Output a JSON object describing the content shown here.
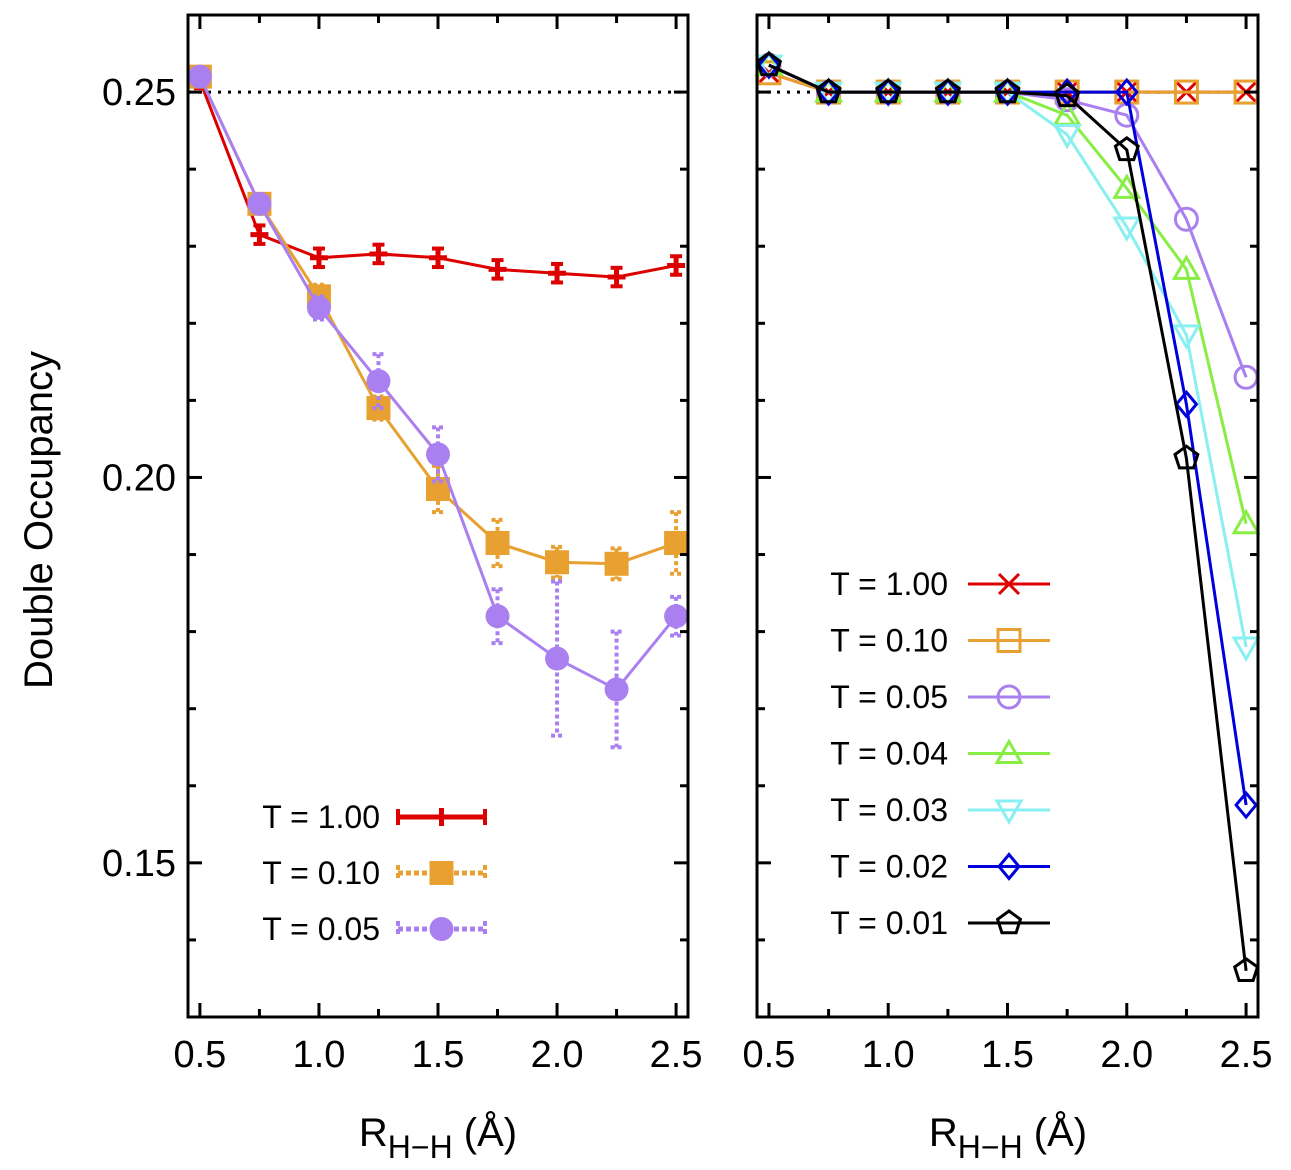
{
  "chart_data": [
    {
      "type": "line",
      "panel": "left",
      "title": "",
      "xlabel": "R",
      "xlabel_subscript": "H−H",
      "xlabel_unit": " (Å)",
      "ylabel": "Double Occupancy",
      "xlim": [
        0.45,
        2.55
      ],
      "ylim": [
        0.13,
        0.26
      ],
      "x_ticks": [
        {
          "value": 0.5,
          "label": "0.5"
        },
        {
          "value": 1.0,
          "label": "1.0"
        },
        {
          "value": 1.5,
          "label": "1.5"
        },
        {
          "value": 2.0,
          "label": "2.0"
        },
        {
          "value": 2.5,
          "label": "2.5"
        }
      ],
      "y_ticks": [
        {
          "value": 0.15,
          "label": "0.15"
        },
        {
          "value": 0.2,
          "label": "0.20"
        },
        {
          "value": 0.25,
          "label": "0.25"
        }
      ],
      "reference_line": 0.25,
      "legend_position": "bottom-left",
      "series": [
        {
          "name": "T = 1.00",
          "color": "#dd0000",
          "marker": "plus",
          "dashed_errorbars": false,
          "x": [
            0.5,
            0.75,
            1.0,
            1.25,
            1.5,
            1.75,
            2.0,
            2.25,
            2.5
          ],
          "y": [
            0.2515,
            0.2315,
            0.2285,
            0.229,
            0.2285,
            0.227,
            0.2265,
            0.226,
            0.2275
          ],
          "err": [
            0.001,
            0.0012,
            0.0012,
            0.0012,
            0.0012,
            0.0012,
            0.0012,
            0.0012,
            0.0012
          ]
        },
        {
          "name": "T = 0.10",
          "color": "#e8a030",
          "marker": "filled-square",
          "dashed_errorbars": true,
          "x": [
            0.5,
            0.75,
            1.0,
            1.25,
            1.5,
            1.75,
            2.0,
            2.25,
            2.5
          ],
          "y": [
            0.252,
            0.2355,
            0.2235,
            0.209,
            0.1985,
            0.1915,
            0.189,
            0.1888,
            0.1915
          ],
          "err": [
            0.0005,
            0.001,
            0.0015,
            0.0015,
            0.003,
            0.003,
            0.002,
            0.002,
            0.004
          ]
        },
        {
          "name": "T = 0.05",
          "color": "#aa80f0",
          "marker": "filled-circle",
          "dashed_errorbars": true,
          "x": [
            0.5,
            0.75,
            1.0,
            1.25,
            1.5,
            1.75,
            2.0,
            2.25,
            2.5
          ],
          "y": [
            0.252,
            0.2355,
            0.222,
            0.2125,
            0.203,
            0.182,
            0.1765,
            0.1725,
            0.182
          ],
          "err": [
            0.0005,
            0.001,
            0.0015,
            0.0035,
            0.0035,
            0.0035,
            0.01,
            0.0075,
            0.0025
          ]
        }
      ]
    },
    {
      "type": "line",
      "panel": "right",
      "title": "",
      "xlabel": "R",
      "xlabel_subscript": "H−H",
      "xlabel_unit": " (Å)",
      "ylabel": "",
      "xlim": [
        0.45,
        2.55
      ],
      "ylim": [
        0.13,
        0.26
      ],
      "x_ticks": [
        {
          "value": 0.5,
          "label": "0.5"
        },
        {
          "value": 1.0,
          "label": "1.0"
        },
        {
          "value": 1.5,
          "label": "1.5"
        },
        {
          "value": 2.0,
          "label": "2.0"
        },
        {
          "value": 2.5,
          "label": "2.5"
        }
      ],
      "reference_line": 0.25,
      "legend_position": "center-left",
      "series": [
        {
          "name": "T = 1.00",
          "color": "#dd0000",
          "marker": "x",
          "x": [
            0.5,
            0.75,
            1.0,
            1.25,
            1.5,
            1.75,
            2.0,
            2.25,
            2.5
          ],
          "y": [
            0.2525,
            0.25,
            0.25,
            0.25,
            0.25,
            0.25,
            0.25,
            0.25,
            0.25
          ]
        },
        {
          "name": "T = 0.10",
          "color": "#e8a030",
          "marker": "open-square",
          "x": [
            0.5,
            0.75,
            1.0,
            1.25,
            1.5,
            1.75,
            2.0,
            2.25,
            2.5
          ],
          "y": [
            0.2525,
            0.25,
            0.25,
            0.25,
            0.25,
            0.25,
            0.25,
            0.25,
            0.25
          ]
        },
        {
          "name": "T = 0.05",
          "color": "#aa80f0",
          "marker": "open-circle",
          "x": [
            0.5,
            0.75,
            1.0,
            1.25,
            1.5,
            1.75,
            2.0,
            2.25,
            2.5
          ],
          "y": [
            0.2535,
            0.25,
            0.25,
            0.25,
            0.25,
            0.249,
            0.247,
            0.2335,
            0.213
          ]
        },
        {
          "name": "T = 0.04",
          "color": "#88ee44",
          "marker": "triangle-up",
          "x": [
            0.5,
            0.75,
            1.0,
            1.25,
            1.5,
            1.75,
            2.0,
            2.25,
            2.5
          ],
          "y": [
            0.2535,
            0.25,
            0.25,
            0.25,
            0.25,
            0.247,
            0.2375,
            0.227,
            0.194
          ]
        },
        {
          "name": "T = 0.03",
          "color": "#88f0f0",
          "marker": "triangle-down",
          "x": [
            0.5,
            0.75,
            1.0,
            1.25,
            1.5,
            1.75,
            2.0,
            2.25,
            2.5
          ],
          "y": [
            0.2535,
            0.25,
            0.25,
            0.25,
            0.25,
            0.2445,
            0.2325,
            0.2185,
            0.178
          ]
        },
        {
          "name": "T = 0.02",
          "color": "#0000dd",
          "marker": "diamond",
          "x": [
            0.5,
            0.75,
            1.0,
            1.25,
            1.5,
            1.75,
            2.0,
            2.25,
            2.5
          ],
          "y": [
            0.2535,
            0.25,
            0.25,
            0.25,
            0.25,
            0.25,
            0.25,
            0.2095,
            0.1575
          ]
        },
        {
          "name": "T = 0.01",
          "color": "#000000",
          "marker": "pentagon",
          "x": [
            0.5,
            0.75,
            1.0,
            1.25,
            1.5,
            1.75,
            2.0,
            2.25,
            2.5
          ],
          "y": [
            0.2535,
            0.25,
            0.25,
            0.25,
            0.25,
            0.2495,
            0.2425,
            0.2025,
            0.136
          ]
        }
      ]
    }
  ]
}
